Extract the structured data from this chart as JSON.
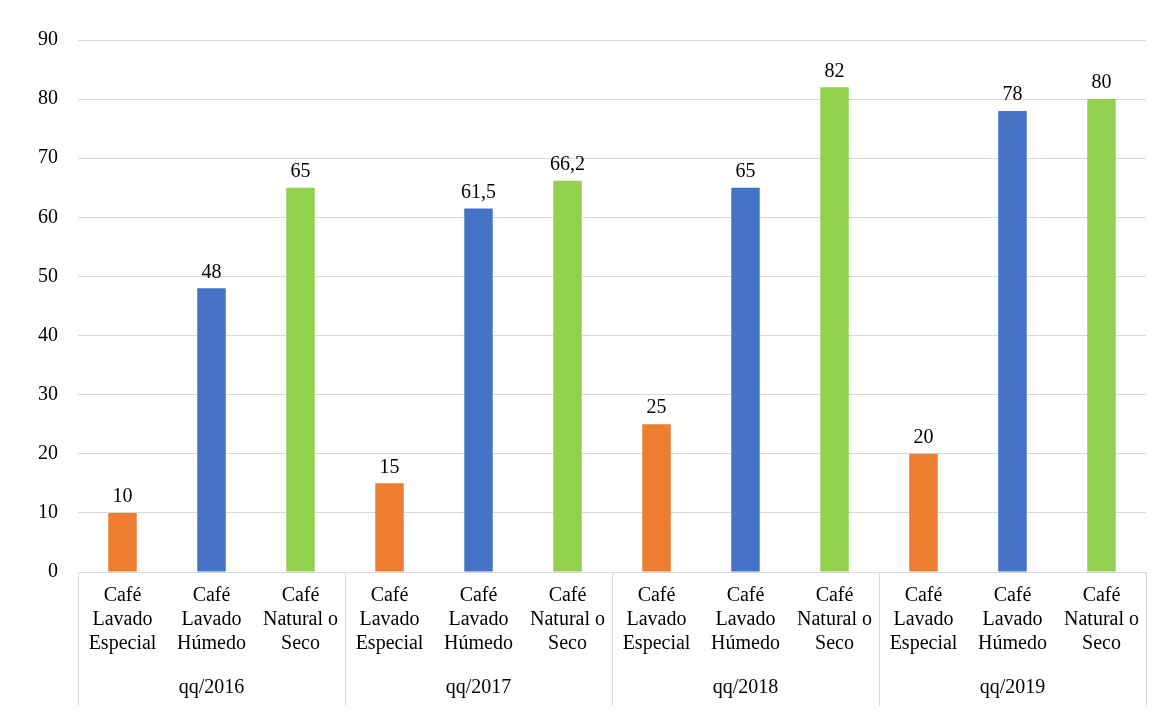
{
  "chart_data": {
    "type": "bar",
    "categories": [
      "Café\nLavado\nEspecial",
      "Café\nLavado\nHúmedo",
      "Café\nNatural o\nSeco",
      "Café\nLavado\nEspecial",
      "Café\nLavado\nHúmedo",
      "Café\nNatural o\nSeco",
      "Café\nLavado\nEspecial",
      "Café\nLavado\nHúmedo",
      "Café\nNatural o\nSeco",
      "Café\nLavado\nEspecial",
      "Café\nLavado\nHúmedo",
      "Café\nNatural o\nSeco"
    ],
    "values": [
      10,
      48,
      65,
      15,
      61.5,
      66.2,
      25,
      65,
      82,
      20,
      78,
      80
    ],
    "colors": [
      "#ed7d31",
      "#4472c4",
      "#92d050",
      "#ed7d31",
      "#4472c4",
      "#92d050",
      "#ed7d31",
      "#4472c4",
      "#92d050",
      "#ed7d31",
      "#4472c4",
      "#92d050"
    ],
    "value_labels": [
      "10",
      "48",
      "65",
      "15",
      "61,5",
      "66,2",
      "25",
      "65",
      "82",
      "20",
      "78",
      "80"
    ],
    "annotations": [
      "qq/2016",
      "qq/2017",
      "qq/2018",
      "qq/2019"
    ],
    "ylim": [
      0,
      90
    ],
    "yticks": [
      0,
      10,
      20,
      30,
      40,
      50,
      60,
      70,
      80,
      90
    ],
    "grid": "y",
    "legend": false
  }
}
